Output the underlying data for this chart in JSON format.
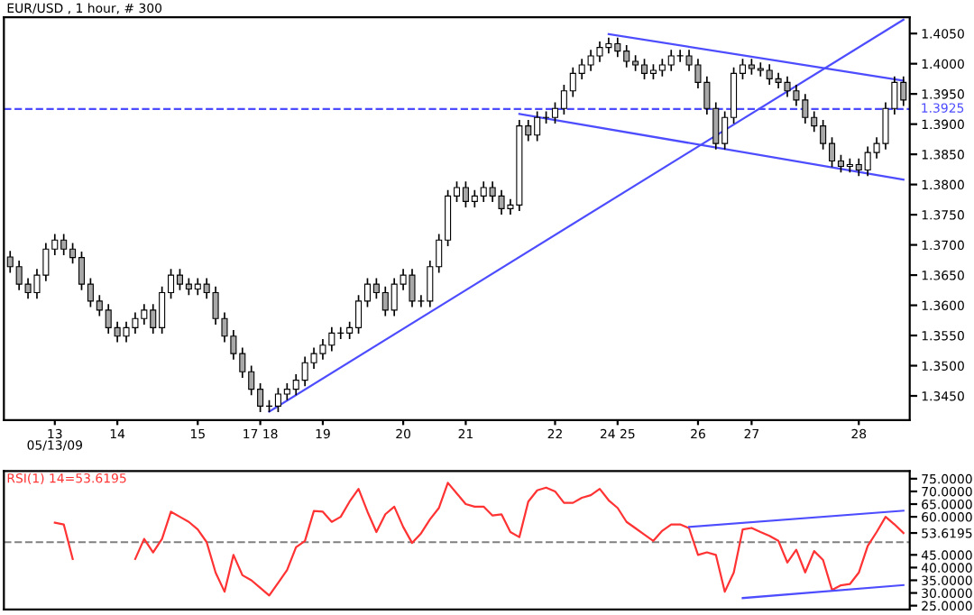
{
  "chart_data": [
    {
      "type": "candlestick",
      "title": "EUR/USD , 1 hour, # 300",
      "colors": [
        "#a8a8a8",
        "#a8a8a8",
        "#a8a8a8",
        "#ffffff",
        "#ffffff",
        "#ffffff",
        "#a8a8a8",
        "#a8a8a8",
        "#a8a8a8",
        "#a8a8a8",
        "#a8a8a8",
        "#a8a8a8",
        "#a8a8a8",
        "#ffffff",
        "#ffffff",
        "#ffffff",
        "#a8a8a8",
        "#ffffff",
        "#ffffff",
        "#a8a8a8",
        "#a8a8a8",
        "#ffffff",
        "#a8a8a8",
        "#a8a8a8",
        "#a8a8a8",
        "#a8a8a8",
        "#a8a8a8",
        "#a8a8a8",
        "#a8a8a8",
        "#ffffff",
        "#ffffff",
        "#ffffff",
        "#ffffff",
        "#ffffff",
        "#ffffff",
        "#ffffff",
        "#ffffff",
        "#ffffff",
        "#ffffff",
        "#ffffff",
        "#ffffff",
        "#a8a8a8",
        "#a8a8a8",
        "#ffffff",
        "#ffffff",
        "#a8a8a8",
        "#ffffff",
        "#ffffff",
        "#ffffff",
        "#ffffff",
        "#ffffff",
        "#a8a8a8",
        "#ffffff",
        "#ffffff",
        "#a8a8a8",
        "#a8a8a8",
        "#ffffff",
        "#ffffff",
        "#a8a8a8",
        "#ffffff",
        "#ffffff",
        "#ffffff",
        "#ffffff",
        "#ffffff",
        "#ffffff",
        "#ffffff",
        "#ffffff",
        "#ffffff",
        "#a8a8a8",
        "#a8a8a8",
        "#a8a8a8",
        "#a8a8a8",
        "#ffffff",
        "#ffffff",
        "#ffffff",
        "#ffffff",
        "#a8a8a8",
        "#a8a8a8",
        "#a8a8a8",
        "#a8a8a8",
        "#ffffff",
        "#ffffff",
        "#ffffff",
        "#a8a8a8",
        "#a8a8a8",
        "#a8a8a8",
        "#a8a8a8",
        "#a8a8a8",
        "#a8a8a8",
        "#a8a8a8",
        "#a8a8a8",
        "#a8a8a8",
        "#a8a8a8",
        "#a8a8a8",
        "#ffffff",
        "#a8a8a8",
        "#ffffff",
        "#ffffff",
        "#ffffff",
        "#ffffff",
        "#a8a8a8"
      ],
      "categories": [
        null,
        null,
        null,
        null,
        null,
        "13",
        null,
        null,
        null,
        null,
        null,
        null,
        "14",
        null,
        null,
        null,
        null,
        null,
        null,
        null,
        null,
        "15",
        null,
        null,
        null,
        null,
        null,
        null,
        "17 18",
        null,
        null,
        null,
        null,
        null,
        null,
        "19",
        null,
        null,
        null,
        null,
        null,
        null,
        null,
        null,
        "20",
        null,
        null,
        null,
        null,
        null,
        null,
        "21",
        null,
        null,
        null,
        null,
        null,
        null,
        null,
        null,
        null,
        "22",
        null,
        null,
        null,
        null,
        null,
        null,
        "24 25",
        null,
        null,
        null,
        null,
        null,
        null,
        null,
        null,
        "26",
        null,
        null,
        null,
        null,
        null,
        "27",
        null,
        null,
        null,
        null,
        null,
        null,
        null,
        null,
        null,
        null,
        null,
        "28",
        null,
        null,
        null,
        null,
        null
      ],
      "ohlc": [
        [
          1.368,
          1.369,
          1.3654,
          1.3664
        ],
        [
          1.3664,
          1.3674,
          1.3625,
          1.3635
        ],
        [
          1.3635,
          1.3645,
          1.3611,
          1.3621
        ],
        [
          1.3621,
          1.366,
          1.3611,
          1.365
        ],
        [
          1.365,
          1.3703,
          1.364,
          1.3693
        ],
        [
          1.3693,
          1.3718,
          1.3683,
          1.3708
        ],
        [
          1.3708,
          1.3718,
          1.3683,
          1.3693
        ],
        [
          1.3693,
          1.3703,
          1.3669,
          1.3679
        ],
        [
          1.3679,
          1.3689,
          1.3625,
          1.3635
        ],
        [
          1.3635,
          1.3645,
          1.3597,
          1.3607
        ],
        [
          1.3607,
          1.3617,
          1.3582,
          1.3592
        ],
        [
          1.3592,
          1.3602,
          1.3553,
          1.3563
        ],
        [
          1.3563,
          1.3573,
          1.3539,
          1.3549
        ],
        [
          1.3549,
          1.3573,
          1.3539,
          1.3563
        ],
        [
          1.3563,
          1.3588,
          1.3553,
          1.3578
        ],
        [
          1.3578,
          1.3602,
          1.3568,
          1.3592
        ],
        [
          1.3592,
          1.3602,
          1.3553,
          1.3563
        ],
        [
          1.3563,
          1.3631,
          1.3553,
          1.3621
        ],
        [
          1.3621,
          1.366,
          1.3611,
          1.365
        ],
        [
          1.365,
          1.366,
          1.3625,
          1.3635
        ],
        [
          1.3635,
          1.3645,
          1.3617,
          1.3627
        ],
        [
          1.3627,
          1.3645,
          1.3617,
          1.3635
        ],
        [
          1.3635,
          1.3645,
          1.3611,
          1.3621
        ],
        [
          1.3621,
          1.3631,
          1.3568,
          1.3578
        ],
        [
          1.3578,
          1.3588,
          1.3539,
          1.3549
        ],
        [
          1.3549,
          1.3559,
          1.351,
          1.352
        ],
        [
          1.352,
          1.353,
          1.348,
          1.349
        ],
        [
          1.349,
          1.35,
          1.3451,
          1.3461
        ],
        [
          1.3461,
          1.3471,
          1.3423,
          1.3433
        ],
        [
          1.3433,
          1.3443,
          1.3423,
          1.3433
        ],
        [
          1.3433,
          1.3463,
          1.3423,
          1.3453
        ],
        [
          1.3453,
          1.3471,
          1.3443,
          1.3461
        ],
        [
          1.3461,
          1.3486,
          1.3451,
          1.3476
        ],
        [
          1.3476,
          1.3515,
          1.3466,
          1.3505
        ],
        [
          1.3505,
          1.353,
          1.3495,
          1.352
        ],
        [
          1.352,
          1.3544,
          1.351,
          1.3534
        ],
        [
          1.3534,
          1.3564,
          1.3524,
          1.3554
        ],
        [
          1.3554,
          1.3564,
          1.3544,
          1.3554
        ],
        [
          1.3554,
          1.3573,
          1.3544,
          1.3563
        ],
        [
          1.3563,
          1.3617,
          1.3553,
          1.3607
        ],
        [
          1.3607,
          1.3645,
          1.3597,
          1.3635
        ],
        [
          1.3635,
          1.3645,
          1.3611,
          1.3621
        ],
        [
          1.3621,
          1.3631,
          1.3582,
          1.3592
        ],
        [
          1.3592,
          1.3645,
          1.3582,
          1.3635
        ],
        [
          1.3635,
          1.366,
          1.3625,
          1.365
        ],
        [
          1.365,
          1.366,
          1.3597,
          1.3607
        ],
        [
          1.3607,
          1.3617,
          1.3597,
          1.3607
        ],
        [
          1.3607,
          1.3674,
          1.3597,
          1.3664
        ],
        [
          1.3664,
          1.3718,
          1.3654,
          1.3708
        ],
        [
          1.3708,
          1.3791,
          1.3698,
          1.3781
        ],
        [
          1.3781,
          1.3805,
          1.3771,
          1.3795
        ],
        [
          1.3795,
          1.3805,
          1.3762,
          1.3772
        ],
        [
          1.3772,
          1.3791,
          1.3762,
          1.3781
        ],
        [
          1.3781,
          1.3805,
          1.3771,
          1.3795
        ],
        [
          1.3795,
          1.3805,
          1.3771,
          1.3781
        ],
        [
          1.3781,
          1.3791,
          1.375,
          1.376
        ],
        [
          1.376,
          1.3776,
          1.375,
          1.3766
        ],
        [
          1.3766,
          1.3907,
          1.3756,
          1.3897
        ],
        [
          1.3897,
          1.3907,
          1.3872,
          1.3882
        ],
        [
          1.3882,
          1.3921,
          1.3872,
          1.3911
        ],
        [
          1.3911,
          1.3921,
          1.3901,
          1.3911
        ],
        [
          1.3911,
          1.3936,
          1.3901,
          1.3926
        ],
        [
          1.3926,
          1.3965,
          1.3916,
          1.3955
        ],
        [
          1.3955,
          1.3994,
          1.3945,
          1.3984
        ],
        [
          1.3984,
          1.4008,
          1.3974,
          1.3998
        ],
        [
          1.3998,
          1.4023,
          1.3988,
          1.4013
        ],
        [
          1.4013,
          1.4037,
          1.4003,
          1.4027
        ],
        [
          1.4027,
          1.4043,
          1.4017,
          1.4033
        ],
        [
          1.4033,
          1.4043,
          1.4011,
          1.4021
        ],
        [
          1.4021,
          1.4031,
          1.3994,
          1.4004
        ],
        [
          1.4004,
          1.4014,
          1.3988,
          1.3998
        ],
        [
          1.3998,
          1.4008,
          1.3974,
          1.3984
        ],
        [
          1.3984,
          1.3999,
          1.3974,
          1.3989
        ],
        [
          1.3989,
          1.4008,
          1.3979,
          1.3998
        ],
        [
          1.3998,
          1.4023,
          1.3988,
          1.4013
        ],
        [
          1.4013,
          1.4023,
          1.4003,
          1.4013
        ],
        [
          1.4013,
          1.4023,
          1.3988,
          1.3998
        ],
        [
          1.3998,
          1.4008,
          1.3959,
          1.3969
        ],
        [
          1.3969,
          1.3979,
          1.3916,
          1.3926
        ],
        [
          1.3926,
          1.3936,
          1.3858,
          1.3868
        ],
        [
          1.3868,
          1.3921,
          1.3858,
          1.3911
        ],
        [
          1.3911,
          1.3994,
          1.3901,
          1.3984
        ],
        [
          1.3984,
          1.4008,
          1.3974,
          1.3998
        ],
        [
          1.3998,
          1.4008,
          1.3982,
          1.3992
        ],
        [
          1.3992,
          1.4002,
          1.3979,
          1.3989
        ],
        [
          1.3989,
          1.3999,
          1.3965,
          1.3975
        ],
        [
          1.3975,
          1.3985,
          1.3959,
          1.3969
        ],
        [
          1.3969,
          1.3979,
          1.3945,
          1.3955
        ],
        [
          1.3955,
          1.3965,
          1.393,
          1.394
        ],
        [
          1.394,
          1.395,
          1.3901,
          1.3911
        ],
        [
          1.3911,
          1.3921,
          1.3887,
          1.3897
        ],
        [
          1.3897,
          1.3907,
          1.3858,
          1.3868
        ],
        [
          1.3868,
          1.3878,
          1.3829,
          1.3839
        ],
        [
          1.3839,
          1.3849,
          1.382,
          1.383
        ],
        [
          1.383,
          1.3843,
          1.382,
          1.3833
        ],
        [
          1.3833,
          1.3843,
          1.3814,
          1.3824
        ],
        [
          1.3824,
          1.3863,
          1.3814,
          1.3853
        ],
        [
          1.3853,
          1.3878,
          1.3843,
          1.3868
        ],
        [
          1.3868,
          1.3936,
          1.3858,
          1.3926
        ],
        [
          1.3926,
          1.3979,
          1.3916,
          1.3969
        ],
        [
          1.3969,
          1.3979,
          1.393,
          1.394
        ]
      ],
      "series": [
        {
          "type": "line",
          "color": "#4d4dff",
          "values": [
            null,
            null,
            null,
            null,
            null,
            null,
            null,
            null,
            null,
            null,
            null,
            null,
            null,
            null,
            null,
            null,
            null,
            null,
            null,
            null,
            null,
            null,
            null,
            null,
            null,
            null,
            null,
            null,
            null,
            1.3424,
            null,
            null,
            null,
            null,
            null,
            null,
            null,
            null,
            null,
            null,
            null,
            null,
            null,
            null,
            null,
            null,
            null,
            null,
            null,
            null,
            null,
            null,
            null,
            null,
            null,
            null,
            null,
            null,
            null,
            null,
            null,
            null,
            null,
            null,
            null,
            null,
            null,
            null,
            null,
            null,
            null,
            null,
            null,
            null,
            null,
            null,
            null,
            null,
            null,
            null,
            null,
            null,
            null,
            null,
            null,
            null,
            null,
            null,
            null,
            null,
            null,
            null,
            null,
            null,
            null,
            null,
            null,
            null,
            null,
            null,
            1.4073
          ]
        },
        {
          "type": "line",
          "color": "#4d4dff",
          "values": [
            null,
            null,
            null,
            null,
            null,
            null,
            null,
            null,
            null,
            null,
            null,
            null,
            null,
            null,
            null,
            null,
            null,
            null,
            null,
            null,
            null,
            null,
            null,
            null,
            null,
            null,
            null,
            null,
            null,
            null,
            null,
            null,
            null,
            null,
            null,
            null,
            null,
            null,
            null,
            null,
            null,
            null,
            null,
            null,
            null,
            null,
            null,
            null,
            null,
            null,
            null,
            null,
            null,
            null,
            null,
            null,
            null,
            null,
            null,
            null,
            null,
            null,
            null,
            null,
            null,
            null,
            null,
            1.4049,
            null,
            null,
            null,
            null,
            null,
            null,
            null,
            null,
            null,
            null,
            null,
            null,
            null,
            null,
            null,
            null,
            null,
            null,
            null,
            null,
            null,
            null,
            null,
            null,
            null,
            null,
            null,
            null,
            null,
            null,
            null,
            null,
            1.3972
          ]
        },
        {
          "type": "line",
          "color": "#4d4dff",
          "values": [
            null,
            null,
            null,
            null,
            null,
            null,
            null,
            null,
            null,
            null,
            null,
            null,
            null,
            null,
            null,
            null,
            null,
            null,
            null,
            null,
            null,
            null,
            null,
            null,
            null,
            null,
            null,
            null,
            null,
            null,
            null,
            null,
            null,
            null,
            null,
            null,
            null,
            null,
            null,
            null,
            null,
            null,
            null,
            null,
            null,
            null,
            null,
            null,
            null,
            null,
            null,
            null,
            null,
            null,
            null,
            null,
            null,
            1.3917,
            null,
            null,
            null,
            null,
            null,
            null,
            null,
            null,
            null,
            null,
            null,
            null,
            null,
            null,
            null,
            null,
            null,
            null,
            null,
            null,
            null,
            null,
            null,
            null,
            null,
            null,
            null,
            null,
            null,
            null,
            null,
            null,
            null,
            null,
            null,
            null,
            null,
            null,
            null,
            null,
            null,
            null,
            1.3808
          ]
        }
      ],
      "ylim": [
        1.341,
        1.4077
      ],
      "yticks": [
        {
          "value": 1.345,
          "label": "1.3450"
        },
        {
          "value": 1.35,
          "label": "1.3500"
        },
        {
          "value": 1.355,
          "label": "1.3550"
        },
        {
          "value": 1.36,
          "label": "1.3600"
        },
        {
          "value": 1.365,
          "label": "1.3650"
        },
        {
          "value": 1.37,
          "label": "1.3700"
        },
        {
          "value": 1.375,
          "label": "1.3750"
        },
        {
          "value": 1.38,
          "label": "1.3800"
        },
        {
          "value": 1.385,
          "label": "1.3850"
        },
        {
          "value": 1.39,
          "label": "1.3900"
        },
        {
          "value": 1.395,
          "label": "1.3950"
        },
        {
          "value": 1.4,
          "label": "1.4000"
        },
        {
          "value": 1.405,
          "label": "1.4050"
        }
      ],
      "ref_lines": [
        {
          "axis": "y",
          "value": 1.3925,
          "label": "1.3925",
          "color": "#4d4dff",
          "line_style": "dashed"
        }
      ],
      "annotations": [
        "05/13/09"
      ],
      "grid": false
    },
    {
      "type": "line",
      "legend": "top left",
      "tick_labels": "y",
      "categories": [
        null,
        null,
        null,
        null,
        null,
        null,
        null,
        null,
        null,
        null,
        null,
        null,
        null,
        null,
        null,
        null,
        null,
        null,
        null,
        null,
        null,
        null,
        null,
        null,
        null,
        null,
        null,
        null,
        null,
        null,
        null,
        null,
        null,
        null,
        null,
        null,
        null,
        null,
        null,
        null,
        null,
        null,
        null,
        null,
        null,
        null,
        null,
        null,
        null,
        null,
        null,
        null,
        null,
        null,
        null,
        null,
        null,
        null,
        null,
        null,
        null,
        null,
        null,
        null,
        null,
        null,
        null,
        null,
        null,
        null,
        null,
        null,
        null,
        null,
        null,
        null,
        null,
        null,
        null,
        null,
        null,
        null,
        null,
        null,
        null,
        null,
        null,
        null,
        null,
        null,
        null,
        null,
        null,
        null,
        null,
        null,
        null,
        null,
        null,
        null,
        null
      ],
      "series": [
        {
          "name": "RSI(1) 14=53.6195",
          "color": "#ff3333",
          "values": [
            null,
            null,
            null,
            null,
            null,
            57.7,
            57,
            43.4,
            null,
            null,
            null,
            null,
            null,
            null,
            43.4,
            51.3,
            46,
            51.3,
            62,
            60,
            58,
            55,
            50,
            38,
            30.5,
            45,
            37,
            35,
            32,
            29,
            34,
            39,
            48,
            50.5,
            62.3,
            62,
            58,
            60,
            66,
            71,
            62,
            54,
            61,
            64,
            56,
            49.7,
            53.5,
            59,
            63.5,
            73.4,
            69.2,
            65,
            64,
            64,
            60.5,
            61,
            54,
            52,
            66,
            70.4,
            71.5,
            70,
            65.5,
            65.5,
            67.5,
            68.5,
            71,
            66.5,
            63.5,
            58,
            55.5,
            53,
            50.5,
            54.5,
            57,
            57,
            55.5,
            45,
            46,
            45,
            30.5,
            38,
            55,
            55.6,
            54,
            52.5,
            50.5,
            42,
            47,
            38.1,
            46.5,
            43,
            31.2,
            33,
            33.5,
            38,
            48.5,
            54,
            60,
            57,
            53.6
          ]
        },
        {
          "color": "#4d4dff",
          "values": [
            null,
            null,
            null,
            null,
            null,
            null,
            null,
            null,
            null,
            null,
            null,
            null,
            null,
            null,
            null,
            null,
            null,
            null,
            null,
            null,
            null,
            null,
            null,
            null,
            null,
            null,
            null,
            null,
            null,
            null,
            null,
            null,
            null,
            null,
            null,
            null,
            null,
            null,
            null,
            null,
            null,
            null,
            null,
            null,
            null,
            null,
            null,
            null,
            null,
            null,
            null,
            null,
            null,
            null,
            null,
            null,
            null,
            null,
            null,
            null,
            null,
            null,
            null,
            null,
            null,
            null,
            null,
            null,
            null,
            null,
            null,
            null,
            null,
            null,
            null,
            null,
            56.0,
            null,
            null,
            null,
            null,
            null,
            null,
            null,
            null,
            null,
            null,
            null,
            null,
            null,
            null,
            null,
            null,
            null,
            null,
            null,
            null,
            null,
            null,
            null,
            62.4
          ]
        },
        {
          "color": "#4d4dff",
          "values": [
            null,
            null,
            null,
            null,
            null,
            null,
            null,
            null,
            null,
            null,
            null,
            null,
            null,
            null,
            null,
            null,
            null,
            null,
            null,
            null,
            null,
            null,
            null,
            null,
            null,
            null,
            null,
            null,
            null,
            null,
            null,
            null,
            null,
            null,
            null,
            null,
            null,
            null,
            null,
            null,
            null,
            null,
            null,
            null,
            null,
            null,
            null,
            null,
            null,
            null,
            null,
            null,
            null,
            null,
            null,
            null,
            null,
            null,
            null,
            null,
            null,
            null,
            null,
            null,
            null,
            null,
            null,
            null,
            null,
            null,
            null,
            null,
            null,
            null,
            null,
            null,
            null,
            null,
            null,
            null,
            null,
            null,
            28.0,
            null,
            null,
            null,
            null,
            null,
            null,
            null,
            null,
            null,
            null,
            null,
            null,
            null,
            null,
            null,
            null,
            null,
            33.1
          ]
        }
      ],
      "ylim": [
        23.5,
        78
      ],
      "yticks": [
        {
          "value": 25,
          "label": "25.0000"
        },
        {
          "value": 30,
          "label": "30.0000"
        },
        {
          "value": 35,
          "label": "35.0000"
        },
        {
          "value": 40,
          "label": "40.0000"
        },
        {
          "value": 45,
          "label": "45.0000"
        },
        {
          "value": 53.6195,
          "label": "53.6195"
        },
        {
          "value": 60,
          "label": "60.0000"
        },
        {
          "value": 65,
          "label": "65.0000"
        },
        {
          "value": 70,
          "label": "70.0000"
        },
        {
          "value": 75,
          "label": "75.0000"
        }
      ],
      "ref_lines": [
        {
          "axis": "y",
          "value": 50,
          "color": "#808080",
          "line_style": "dashed"
        }
      ],
      "grid": false
    }
  ]
}
